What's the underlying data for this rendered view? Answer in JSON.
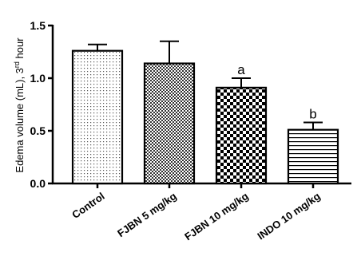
{
  "chart_data": {
    "type": "bar",
    "categories": [
      "Control",
      "FJBN 5 mg/kg",
      "FJBN 10 mg/kg",
      "INDO 10 mg/kg"
    ],
    "values": [
      1.26,
      1.14,
      0.91,
      0.51
    ],
    "errors": [
      0.06,
      0.21,
      0.09,
      0.07
    ],
    "annotations": [
      "",
      "",
      "a",
      "b"
    ],
    "patterns": [
      "fine-dots",
      "dense-checker",
      "coarse-checker",
      "horizontal-lines"
    ],
    "ylabel_main": "Edema volume (mL), 3",
    "ylabel_sup": "rd",
    "ylabel_end": " hour",
    "ylim": [
      0.0,
      1.5
    ],
    "yticks": [
      0.0,
      0.5,
      1.0,
      1.5
    ],
    "ytick_labels": [
      "0.0",
      "0.5",
      "1.0",
      "1.5"
    ],
    "grid": false,
    "colors": {
      "bar_stroke": "#000000",
      "bar_fill": "#ffffff"
    }
  }
}
